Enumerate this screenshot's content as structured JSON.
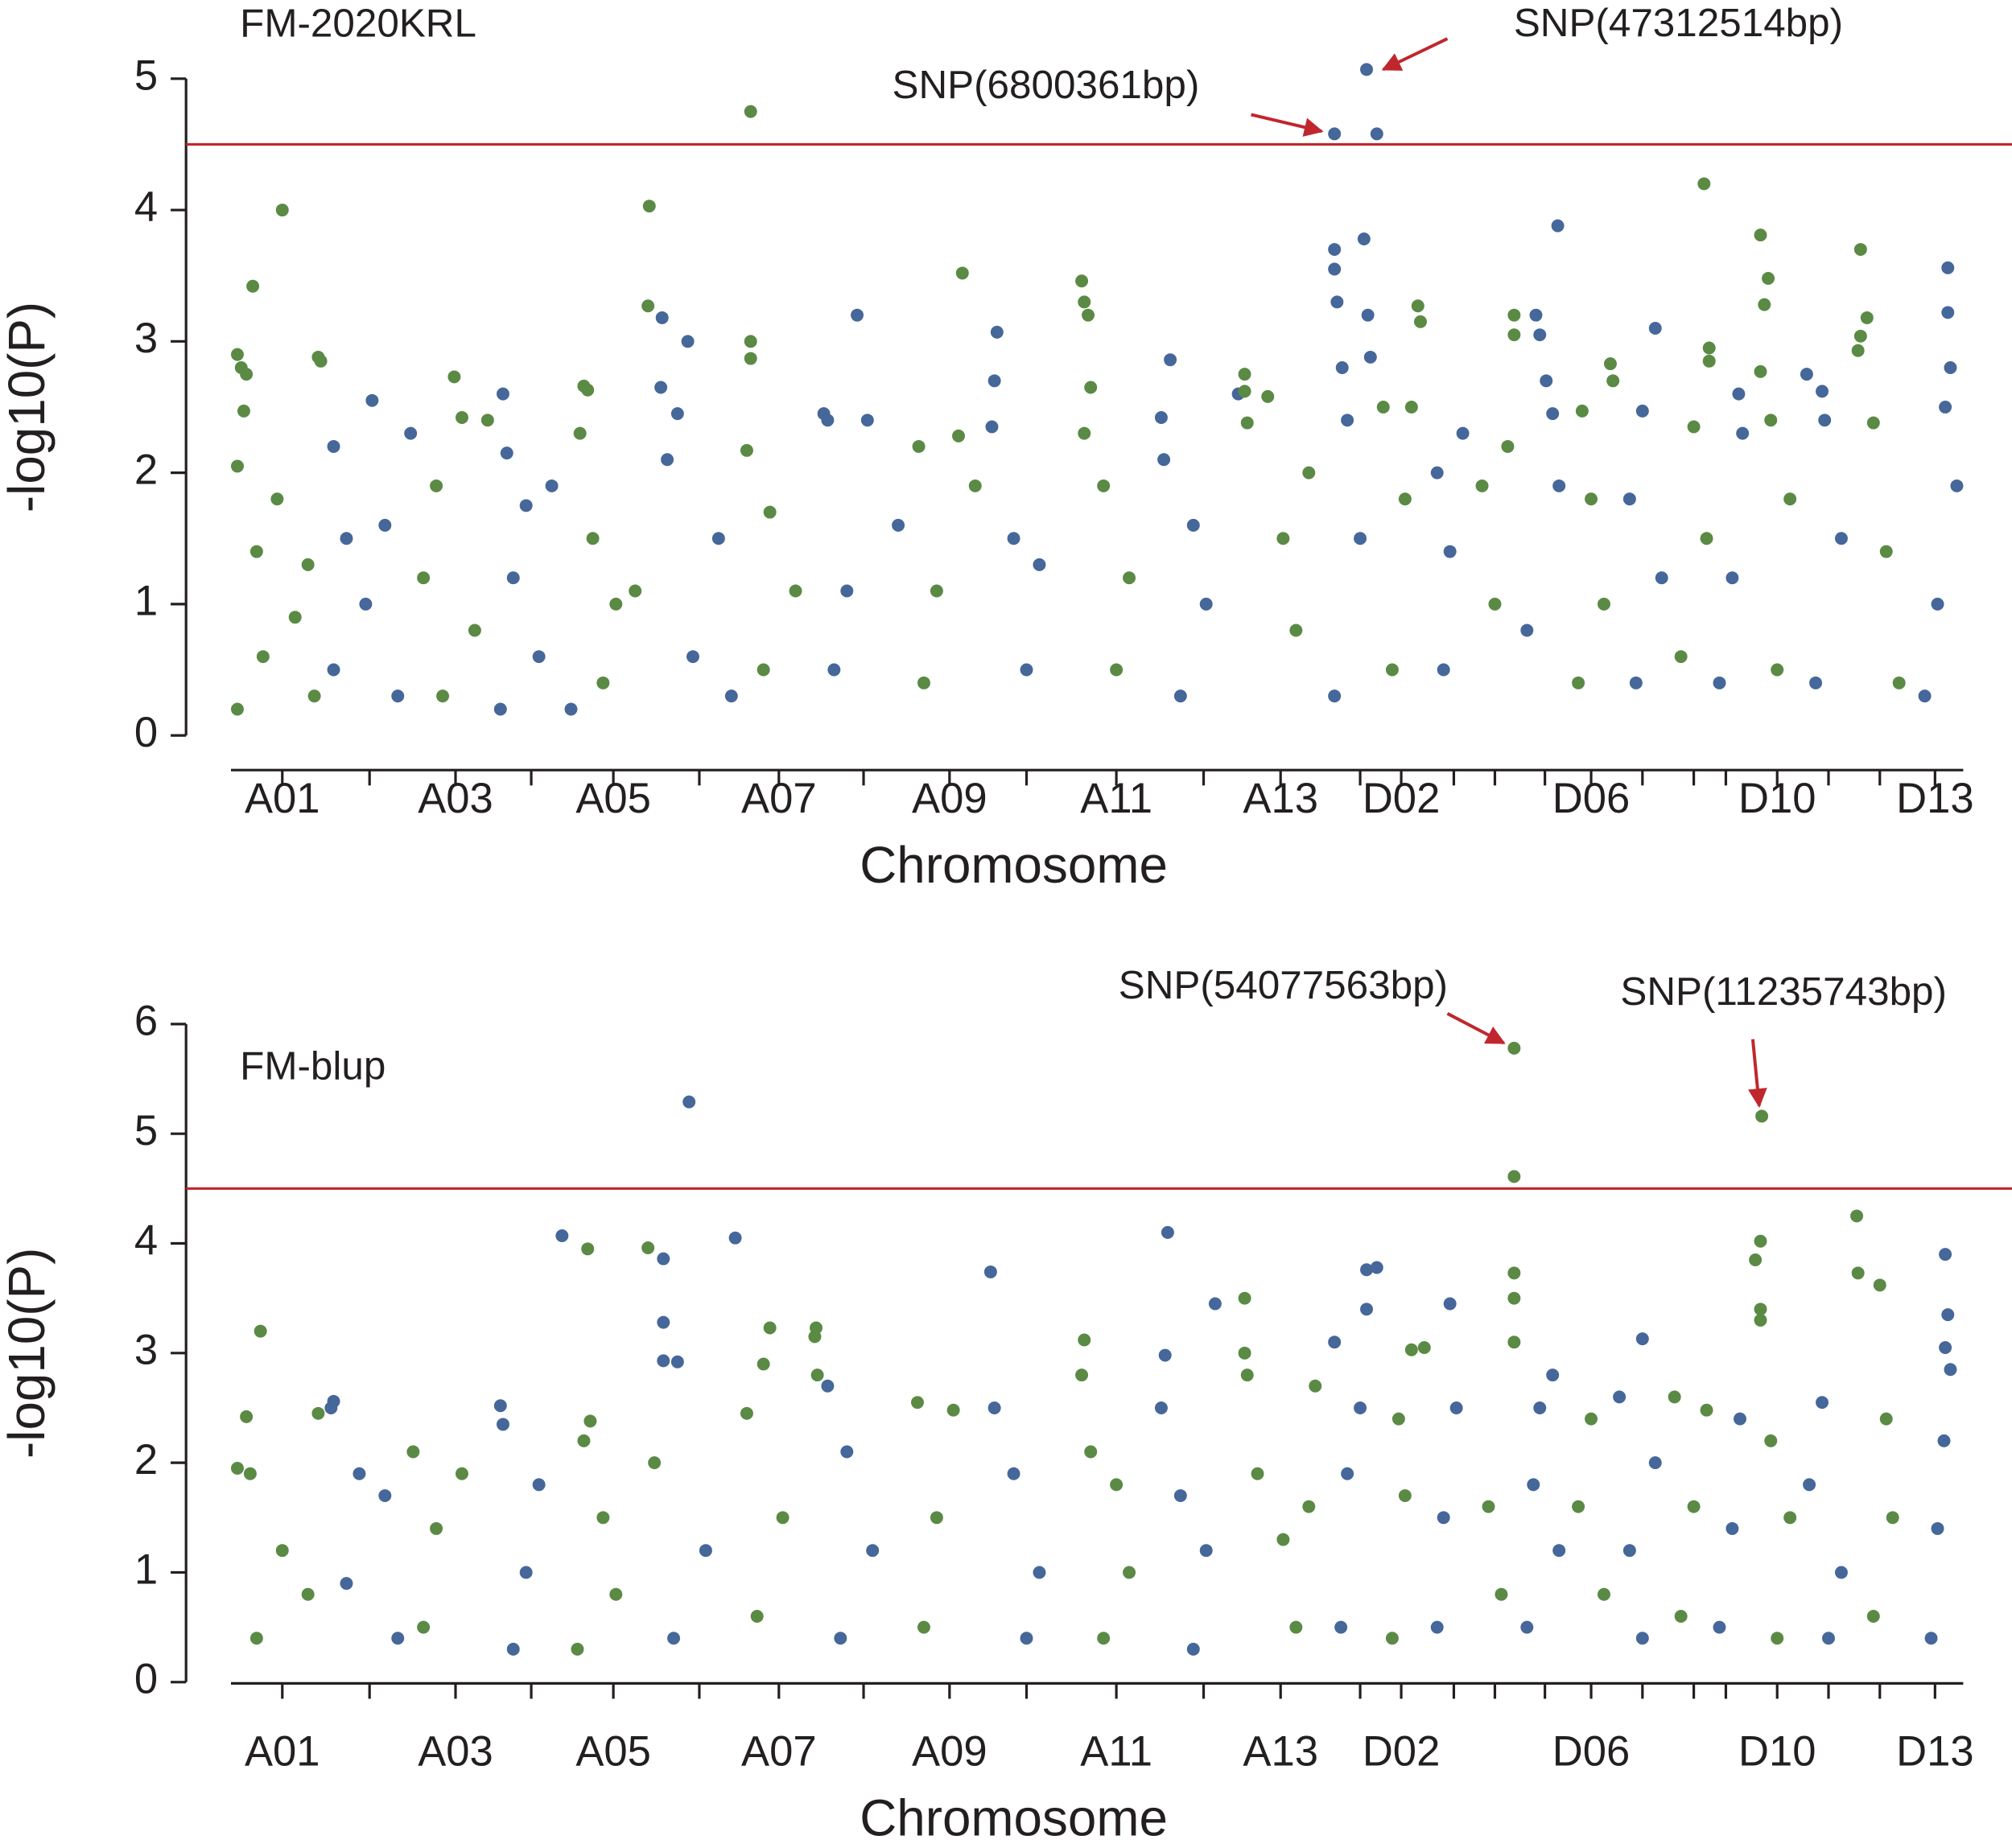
{
  "chart_data": [
    {
      "type": "scatter",
      "title": "FM-2020KRL",
      "xlabel": "Chromosome",
      "ylabel": "-log10(P)",
      "categories": [
        "A01",
        null,
        "A03",
        null,
        "A05",
        null,
        "A07",
        null,
        "A09",
        null,
        "A11",
        null,
        "A13",
        null,
        "D02",
        null,
        null,
        null,
        "D06",
        null,
        null,
        null,
        "D10",
        null,
        null,
        "D13"
      ],
      "xticks": [
        40,
        108,
        175,
        234,
        298,
        365,
        427,
        493,
        560,
        620,
        690,
        758,
        818,
        880,
        912,
        953,
        985,
        1024,
        1060,
        1100,
        1140,
        1165,
        1205,
        1245,
        1285,
        1328
      ],
      "xlim": [
        0,
        1350
      ],
      "ylim": [
        0,
        5
      ],
      "yticks": [
        0,
        1,
        2,
        3,
        4,
        5
      ],
      "colors": [
        "#5a8a44",
        "#45679a"
      ],
      "threshold": 4.5,
      "threshold_color": "#c0272d",
      "x": [
        5,
        8,
        12,
        17,
        5,
        10,
        40,
        36,
        20,
        60,
        50,
        25,
        65,
        5,
        68,
        70,
        80,
        110,
        90,
        120,
        105,
        80,
        130,
        140,
        174,
        180,
        200,
        160,
        150,
        190,
        165,
        212,
        215,
        230,
        250,
        220,
        240,
        210,
        275,
        278,
        272,
        282,
        300,
        315,
        290,
        265,
        326,
        325,
        336,
        356,
        335,
        340,
        348,
        380,
        360,
        390,
        405,
        405,
        405,
        402,
        420,
        440,
        415,
        462,
        465,
        488,
        496,
        520,
        480,
        470,
        536,
        570,
        567,
        580,
        550,
        540,
        595,
        597,
        593,
        610,
        630,
        620,
        663,
        665,
        668,
        670,
        665,
        680,
        700,
        690,
        732,
        725,
        727,
        750,
        760,
        740,
        785,
        790,
        790,
        792,
        808,
        820,
        840,
        830,
        860,
        860,
        860,
        862,
        866,
        870,
        880,
        860,
        885,
        893,
        883,
        886,
        888,
        898,
        925,
        927,
        920,
        915,
        905,
        940,
        960,
        950,
        945,
        975,
        1000,
        1000,
        995,
        985,
        1017,
        1020,
        1025,
        1030,
        1034,
        1035,
        1010,
        1053,
        1060,
        1070,
        1050,
        1075,
        1077,
        1110,
        1100,
        1090,
        1115,
        1095,
        1152,
        1152,
        1148,
        1140,
        1150,
        1130,
        1175,
        1178,
        1170,
        1160,
        1192,
        1198,
        1195,
        1192,
        1200,
        1215,
        1205,
        1228,
        1240,
        1242,
        1255,
        1235,
        1270,
        1275,
        1270,
        1268,
        1280,
        1290,
        1300,
        1338,
        1338,
        1340,
        1336,
        1345,
        1330,
        1320
      ],
      "values": [
        2.9,
        2.8,
        2.75,
        3.42,
        2.05,
        2.47,
        4.0,
        1.8,
        1.4,
        1.3,
        0.9,
        0.6,
        0.3,
        0.2,
        2.88,
        2.85,
        2.2,
        2.55,
        1.5,
        1.6,
        1.0,
        0.5,
        0.3,
        2.3,
        2.73,
        2.42,
        2.4,
        1.9,
        1.2,
        0.8,
        0.3,
        2.6,
        2.15,
        1.75,
        1.9,
        1.2,
        0.6,
        0.2,
        2.66,
        2.63,
        2.3,
        1.5,
        1.0,
        1.1,
        0.4,
        0.2,
        4.03,
        3.27,
        3.18,
        3.0,
        2.65,
        2.1,
        2.45,
        1.5,
        0.6,
        0.3,
        4.75,
        3.0,
        2.87,
        2.17,
        1.7,
        1.1,
        0.5,
        2.45,
        2.4,
        3.2,
        2.4,
        1.6,
        1.1,
        0.5,
        2.2,
        3.52,
        2.28,
        1.9,
        1.1,
        0.4,
        2.7,
        3.07,
        2.35,
        1.5,
        1.3,
        0.5,
        3.46,
        3.3,
        3.2,
        2.65,
        2.3,
        1.9,
        1.2,
        0.5,
        2.86,
        2.42,
        2.1,
        1.6,
        1.0,
        0.3,
        2.6,
        2.75,
        2.62,
        2.38,
        2.58,
        1.5,
        2.0,
        0.8,
        4.58,
        3.7,
        3.55,
        3.3,
        2.8,
        2.4,
        1.5,
        0.3,
        5.07,
        4.58,
        3.78,
        3.2,
        2.88,
        2.5,
        3.27,
        3.15,
        2.5,
        1.8,
        0.5,
        2.0,
        2.3,
        1.4,
        0.5,
        1.9,
        3.2,
        3.05,
        2.2,
        1.0,
        3.2,
        3.05,
        2.7,
        2.45,
        3.88,
        1.9,
        0.8,
        2.47,
        1.8,
        1.0,
        0.4,
        2.83,
        2.7,
        3.1,
        2.47,
        1.8,
        1.2,
        0.4,
        2.95,
        2.85,
        4.2,
        2.35,
        1.5,
        0.6,
        2.6,
        2.3,
        1.2,
        0.4,
        3.81,
        3.48,
        3.28,
        2.77,
        2.4,
        1.8,
        0.5,
        2.75,
        2.62,
        2.4,
        1.5,
        0.4,
        3.7,
        3.18,
        3.04,
        2.93,
        2.38,
        1.4,
        0.4,
        3.56,
        3.22,
        2.8,
        2.5,
        1.9,
        1.0,
        0.3
      ],
      "annotations": [
        {
          "text": "SNP(47312514bp)",
          "x": 885,
          "y": 5.07
        },
        {
          "text": "SNP(6800361bp)",
          "x": 860,
          "y": 4.58
        }
      ]
    },
    {
      "type": "scatter",
      "title": "FM-blup",
      "xlabel": "Chromosome",
      "ylabel": "-log10(P)",
      "categories": [
        "A01",
        null,
        "A03",
        null,
        "A05",
        null,
        "A07",
        null,
        "A09",
        null,
        "A11",
        null,
        "A13",
        null,
        "D02",
        null,
        null,
        null,
        "D06",
        null,
        null,
        null,
        "D10",
        null,
        null,
        "D13"
      ],
      "xticks": [
        40,
        108,
        175,
        234,
        298,
        365,
        427,
        493,
        560,
        620,
        690,
        758,
        818,
        880,
        912,
        953,
        985,
        1024,
        1060,
        1100,
        1140,
        1165,
        1205,
        1245,
        1285,
        1328
      ],
      "xlim": [
        0,
        1350
      ],
      "ylim": [
        0,
        6
      ],
      "yticks": [
        0,
        1,
        2,
        3,
        4,
        5,
        6
      ],
      "colors": [
        "#5a8a44",
        "#45679a"
      ],
      "threshold": 4.5,
      "threshold_color": "#c0272d",
      "x": [
        23,
        12,
        5,
        15,
        68,
        40,
        20,
        60,
        80,
        78,
        100,
        120,
        90,
        130,
        142,
        180,
        160,
        150,
        210,
        212,
        240,
        230,
        220,
        258,
        278,
        280,
        275,
        290,
        300,
        270,
        325,
        337,
        337,
        337,
        348,
        357,
        330,
        370,
        345,
        393,
        420,
        415,
        402,
        430,
        410,
        456,
        455,
        457,
        465,
        480,
        500,
        475,
        535,
        563,
        550,
        540,
        592,
        595,
        610,
        630,
        620,
        665,
        663,
        670,
        690,
        700,
        680,
        730,
        728,
        725,
        740,
        767,
        760,
        750,
        790,
        790,
        792,
        800,
        820,
        840,
        830,
        845,
        860,
        885,
        893,
        885,
        880,
        870,
        865,
        920,
        930,
        910,
        915,
        905,
        950,
        955,
        945,
        940,
        1000,
        1000,
        1000,
        1000,
        1000,
        980,
        990,
        1020,
        1030,
        1015,
        1035,
        1010,
        1060,
        1050,
        1070,
        1100,
        1082,
        1110,
        1090,
        1100,
        1125,
        1150,
        1140,
        1130,
        1176,
        1170,
        1160,
        1193,
        1192,
        1188,
        1192,
        1192,
        1200,
        1215,
        1205,
        1240,
        1230,
        1255,
        1245,
        1267,
        1268,
        1285,
        1290,
        1295,
        1280,
        1336,
        1338,
        1336,
        1340,
        1335,
        1330,
        1325
      ],
      "values": [
        3.2,
        2.42,
        1.95,
        1.9,
        2.45,
        1.2,
        0.4,
        0.8,
        2.56,
        2.5,
        1.9,
        1.7,
        0.9,
        0.4,
        2.1,
        1.9,
        1.4,
        0.5,
        2.52,
        2.35,
        1.8,
        1.0,
        0.3,
        4.07,
        3.95,
        2.38,
        2.2,
        1.5,
        0.8,
        0.3,
        3.96,
        3.86,
        3.28,
        2.93,
        2.92,
        5.29,
        2.0,
        1.2,
        0.4,
        4.05,
        3.23,
        2.9,
        2.45,
        1.5,
        0.6,
        3.23,
        3.15,
        2.8,
        2.7,
        2.1,
        1.2,
        0.4,
        2.55,
        2.48,
        1.5,
        0.5,
        3.74,
        2.5,
        1.9,
        1.0,
        0.4,
        3.12,
        2.8,
        2.1,
        1.8,
        1.0,
        0.4,
        4.1,
        2.98,
        2.5,
        1.7,
        3.45,
        1.2,
        0.3,
        3.5,
        3.0,
        2.8,
        1.9,
        1.3,
        1.6,
        0.5,
        2.7,
        3.1,
        3.76,
        3.78,
        3.4,
        2.5,
        1.9,
        0.5,
        3.03,
        3.05,
        2.4,
        1.7,
        0.4,
        3.45,
        2.5,
        1.5,
        0.5,
        5.78,
        4.61,
        3.73,
        3.5,
        3.1,
        1.6,
        0.8,
        2.5,
        2.8,
        1.8,
        1.2,
        0.5,
        2.4,
        1.6,
        0.8,
        3.13,
        2.6,
        2.0,
        1.2,
        0.4,
        2.6,
        2.48,
        1.6,
        0.6,
        2.4,
        1.4,
        0.5,
        5.16,
        4.02,
        3.85,
        3.4,
        3.3,
        2.2,
        1.5,
        0.4,
        2.55,
        1.8,
        1.0,
        0.4,
        4.25,
        3.73,
        3.62,
        2.4,
        1.5,
        0.6,
        3.9,
        3.35,
        3.05,
        2.85,
        2.2,
        1.4,
        0.4
      ],
      "annotations": [
        {
          "text": "SNP(54077563bp)",
          "x": 1000,
          "y": 5.78
        },
        {
          "text": "SNP(11235743bp)",
          "x": 1193,
          "y": 5.16
        }
      ]
    }
  ]
}
